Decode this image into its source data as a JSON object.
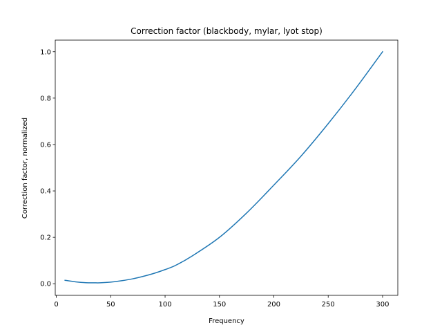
{
  "chart_data": {
    "type": "line",
    "title": "Correction factor (blackbody, mylar, lyot stop)",
    "xlabel": "Frequency",
    "ylabel": "Correction factor, normalized",
    "xlim": [
      -1,
      314
    ],
    "ylim": [
      -0.05,
      1.05
    ],
    "x_ticks": [
      0,
      50,
      100,
      150,
      200,
      250,
      300
    ],
    "x_tick_labels": [
      "0",
      "50",
      "100",
      "150",
      "200",
      "250",
      "300"
    ],
    "y_ticks": [
      0.0,
      0.2,
      0.4,
      0.6,
      0.8,
      1.0
    ],
    "y_tick_labels": [
      "0.0",
      "0.2",
      "0.4",
      "0.6",
      "0.8",
      "1.0"
    ],
    "grid": false,
    "series": [
      {
        "color": "#1f77b4",
        "x": [
          8,
          15,
          20,
          25,
          30,
          35,
          40,
          50,
          60,
          70,
          80,
          90,
          100,
          110,
          125,
          150,
          175,
          200,
          225,
          250,
          275,
          300
        ],
        "y": [
          0.015,
          0.01,
          0.007,
          0.005,
          0.004,
          0.004,
          0.004,
          0.007,
          0.013,
          0.021,
          0.032,
          0.045,
          0.061,
          0.08,
          0.12,
          0.2,
          0.305,
          0.425,
          0.55,
          0.69,
          0.84,
          1.0
        ]
      }
    ]
  }
}
